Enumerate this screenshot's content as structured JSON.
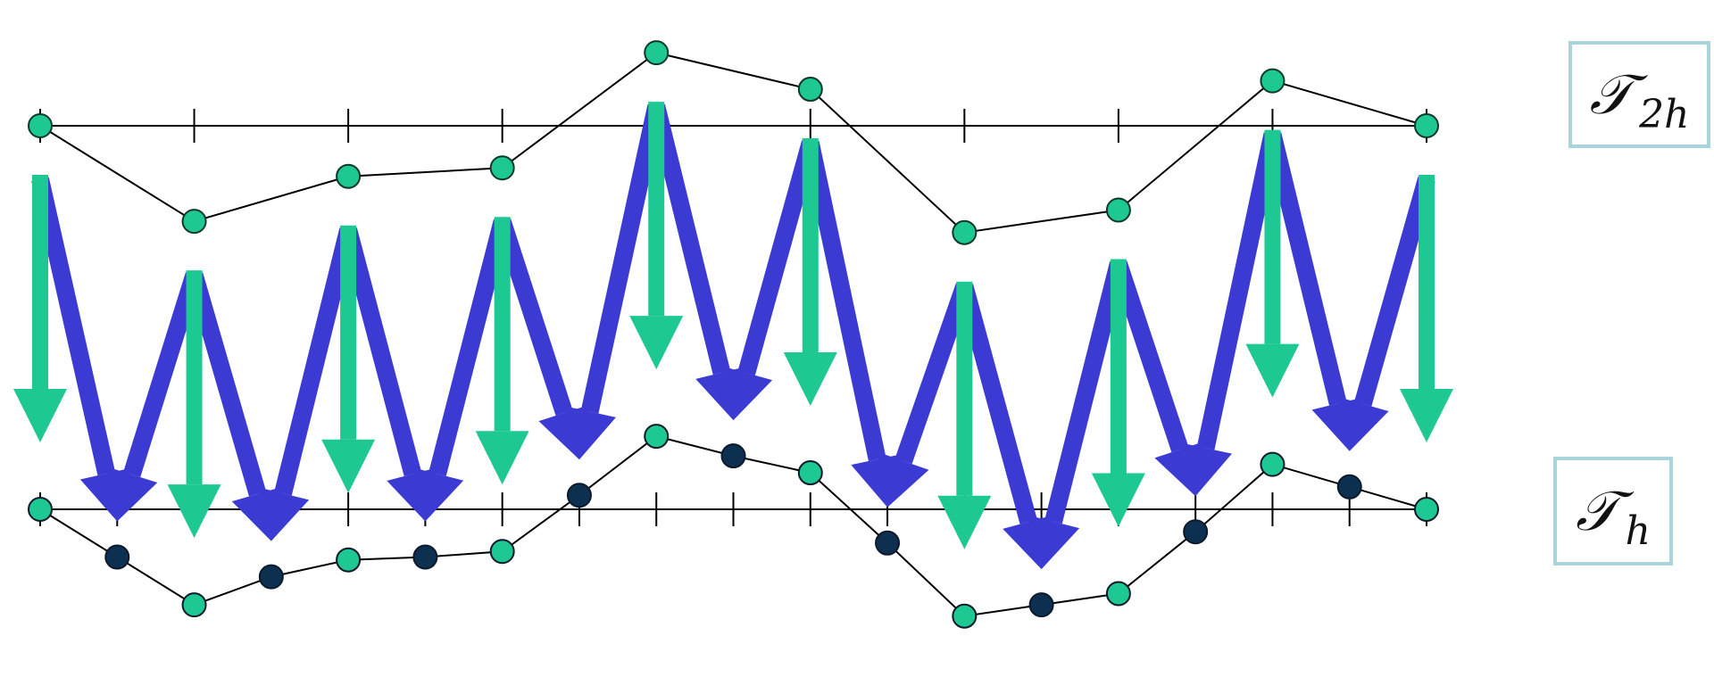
{
  "labels": {
    "coarse_symbol": "𝒯",
    "coarse_subscript": "2h",
    "fine_symbol": "𝒯",
    "fine_subscript": "h"
  },
  "colors": {
    "line": "#000000",
    "coarse_node": "#1ec893",
    "fine_only_node": "#0d2f50",
    "injection_arrow": "#1ec893",
    "interpolation_arrow": "#3b3bd4",
    "label_border": "#a9d4dc"
  },
  "coarse_mesh_values": [
    0,
    -1.7,
    -0.9,
    -0.75,
    1.3,
    0.65,
    -1.9,
    -1.5,
    0.8,
    0.0
  ],
  "fine_mesh_values": [
    0,
    -0.85,
    -1.7,
    -1.2,
    -0.9,
    -0.85,
    -0.75,
    0.25,
    1.3,
    0.95,
    0.65,
    -0.6,
    -1.9,
    -1.7,
    -1.5,
    -0.4,
    0.8,
    0.4,
    0.0
  ],
  "transfer_arrows": {
    "injection_count": 10,
    "interpolation_count": 18
  }
}
